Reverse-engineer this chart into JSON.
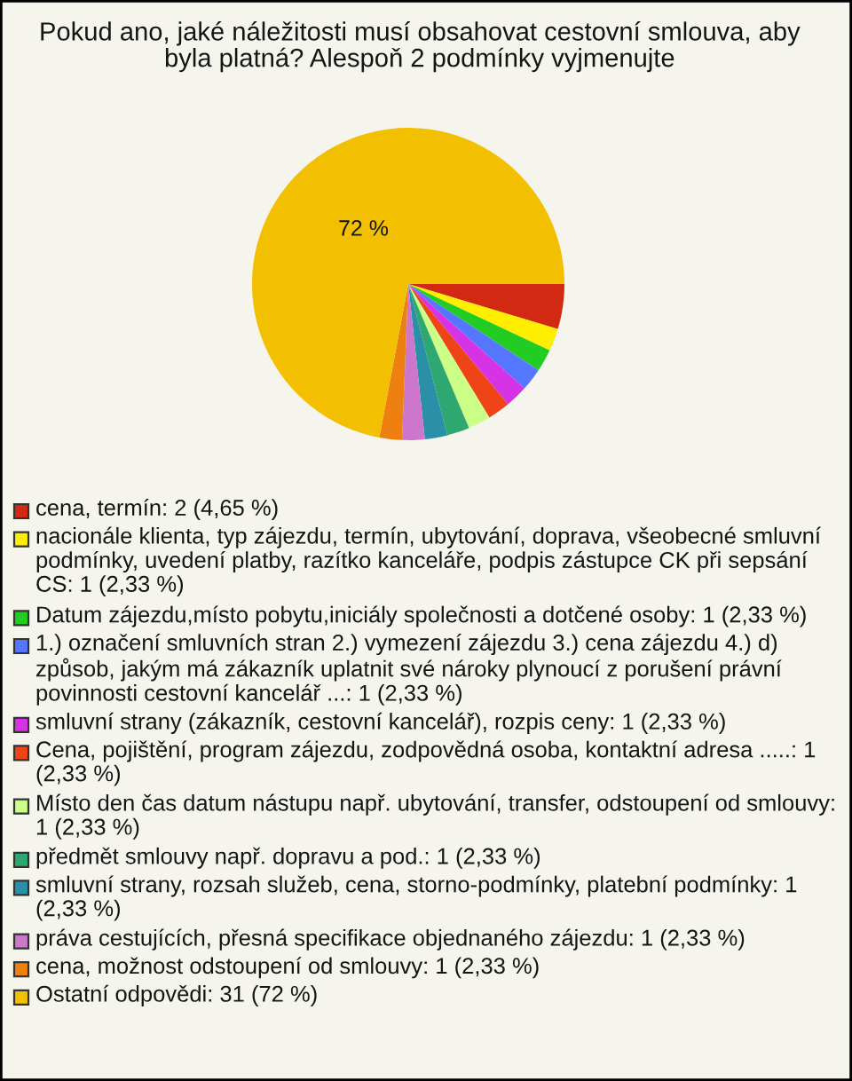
{
  "chart_data": {
    "type": "pie",
    "title": "Pokud ano, jaké náležitosti musí obsahovat cestovní smlouva, aby byla platná? Alespoň 2 podmínky vyjmenujte",
    "categories": [
      "cena, termín: 2 (4,65 %)",
      "nacionále klienta, typ zájezdu, termín, ubytování, doprava, všeobecné smluvní podmínky, uvedení platby, razítko kanceláře, podpis zástupce CK při sepsání CS: 1 (2,33 %)",
      "Datum zájezdu,místo pobytu,iniciály společnosti a dotčené osoby: 1 (2,33 %)",
      "1.) označení smluvních stran 2.) vymezení zájezdu 3.) cena zájezdu 4.) d) způsob, jakým má zákazník uplatnit své nároky plynoucí z porušení právní povinnosti cestovní kancelář ...: 1 (2,33 %)",
      "smluvní strany (zákazník, cestovní kancelář), rozpis ceny: 1 (2,33 %)",
      "Cena, pojištění, program zájezdu, zodpovědná osoba, kontaktní adresa .....: 1 (2,33 %)",
      "Místo den čas datum nástupu např. ubytování, transfer, odstoupení od smlouvy: 1 (2,33 %)",
      "předmět smlouvy např. dopravu a pod.: 1 (2,33 %)",
      "smluvní strany, rozsah služeb, cena, storno-podmínky, platební podmínky: 1 (2,33 %)",
      "práva cestujících, přesná specifikace objednaného zájezdu: 1 (2,33 %)",
      "cena, možnost odstoupení od smlouvy: 1 (2,33 %)",
      "Ostatní odpovědi: 31 (72 %)"
    ],
    "values": [
      4.65,
      2.33,
      2.33,
      2.33,
      2.33,
      2.33,
      2.33,
      2.33,
      2.33,
      2.33,
      2.33,
      72
    ],
    "colors": [
      "#d22a12",
      "#ffee00",
      "#22cc22",
      "#5577ff",
      "#d633e6",
      "#ee4418",
      "#ccff88",
      "#2ea870",
      "#2a90a8",
      "#cc77cc",
      "#ee8011",
      "#f2c000"
    ],
    "value_labels": [
      null,
      null,
      null,
      null,
      null,
      null,
      null,
      null,
      null,
      null,
      null,
      "72 %"
    ],
    "legend": "bottom"
  }
}
